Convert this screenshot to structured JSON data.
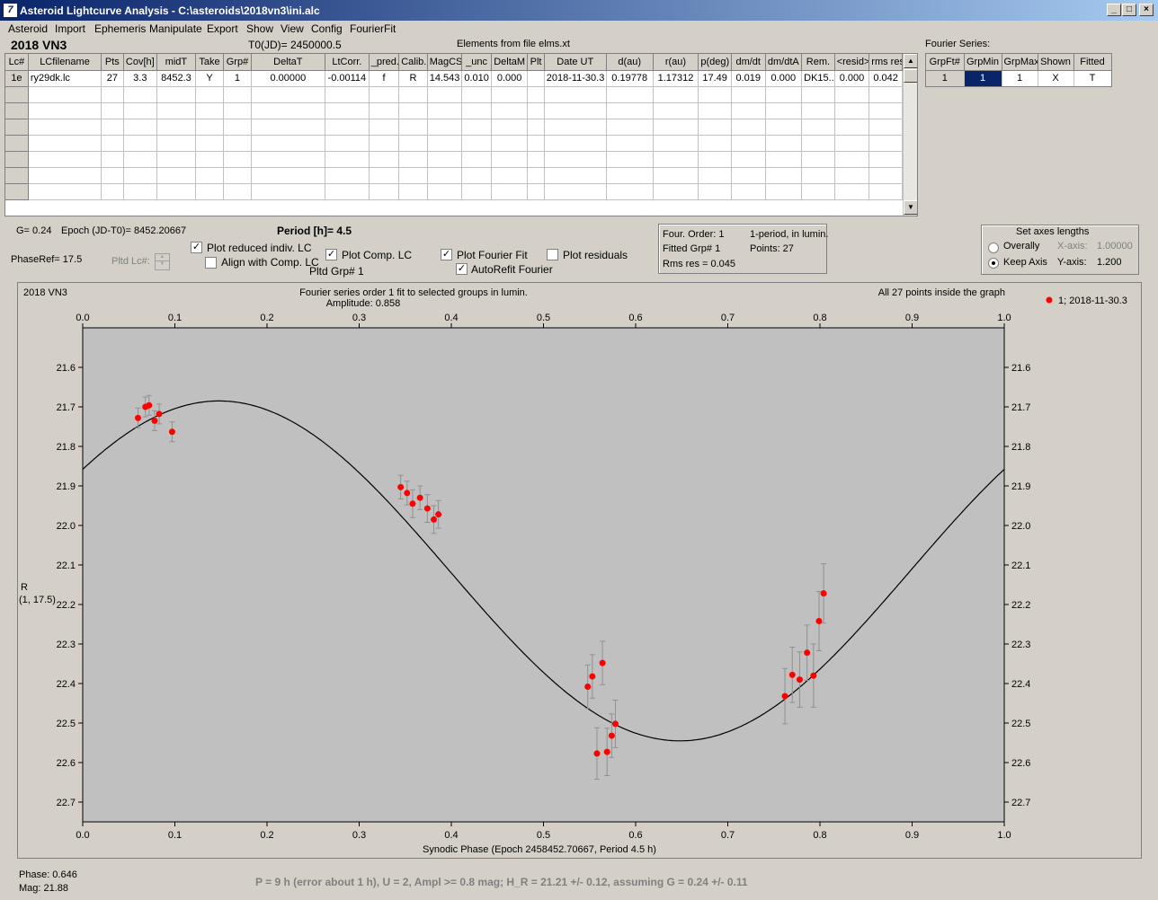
{
  "window": {
    "title": "Asteroid Lightcurve Analysis - C:\\asteroids\\2018vn3\\ini.alc",
    "icon": "app-logo-icon",
    "min": "_",
    "max": "□",
    "close": "×"
  },
  "menu": [
    "Asteroid",
    "Import",
    "Ephemeris",
    "Manipulate",
    "Export",
    "Show",
    "View",
    "Config",
    "FourierFit"
  ],
  "info": {
    "asteroid": "2018 VN3",
    "t0": "T0(JD)= 2450000.5",
    "elements": "Elements from file elms.xt",
    "fourier_title": "Fourier Series:"
  },
  "lc_table": {
    "headers": [
      "Lc#",
      "LCfilename",
      "Pts",
      "Cov[h]",
      "midT",
      "Take",
      "Grp#",
      "DeltaT",
      "LtCorr.",
      "_pred.",
      "Calib.",
      "MagCS",
      "_unc",
      "DeltaM",
      "Plt",
      "Date UT",
      "d(au)",
      "r(au)",
      "p(deg)",
      "dm/dt",
      "dm/dtA",
      "Rem.",
      "<resid>",
      "rms res"
    ],
    "rows": [
      [
        "1e",
        "ry29dk.lc",
        "27",
        "3.3",
        "8452.3",
        "Y",
        "1",
        "0.00000",
        "-0.00114",
        "f",
        "R",
        "14.543",
        "0.010",
        "0.000",
        "",
        "2018-11-30.3",
        "0.19778",
        "1.17312",
        "17.49",
        "0.019",
        "0.000",
        "DK15...",
        "0.000",
        "0.042"
      ]
    ]
  },
  "fourier_table": {
    "headers": [
      "GrpFt#",
      "GrpMin",
      "GrpMax",
      "Shown",
      "Fitted"
    ],
    "rows": [
      [
        "1",
        "1",
        "1",
        "X",
        "T"
      ]
    ]
  },
  "params": {
    "g": "G= 0.24",
    "epoch": "Epoch (JD-T0)= 8452.20667",
    "period": "Period [h]= 4.5",
    "phaseref": "PhaseRef= 17.5",
    "pltd_lc": "Pltd Lc#:",
    "plot_reduced": "Plot reduced indiv. LC",
    "align_comp": "Align with Comp. LC",
    "plot_comp": "Plot Comp. LC",
    "pltd_grp": "Pltd Grp#  1",
    "plot_fourier": "Plot Fourier Fit",
    "autorefit": "AutoRefit Fourier",
    "plot_resid": "Plot residuals",
    "four_order": "Four. Order:  1",
    "one_period": "1-period, in lumin.",
    "fitted_grp": "Fitted Grp# 1",
    "points": "Points: 27",
    "rms": "Rms res     = 0.045",
    "axes_title": "Set axes lengths",
    "overally": "Overally",
    "keep_axis": "Keep Axis",
    "xaxis_lbl": "X-axis:",
    "xaxis_val": "1.00000",
    "yaxis_lbl": "Y-axis:",
    "yaxis_val": "1.200"
  },
  "plot": {
    "object": "2018 VN3",
    "subtitle1": "Fourier series order 1 fit to selected groups in lumin.",
    "subtitle2": "Amplitude: 0.858",
    "note": "All 27 points inside the graph",
    "legend": "1; 2018-11-30.3",
    "ylabel1": "R",
    "ylabel2": "(1, 17.5)",
    "xlabel": "Synodic Phase (Epoch 2458452.70667, Period 4.5 h)"
  },
  "chart_data": {
    "type": "scatter",
    "xlim": [
      0.0,
      1.0
    ],
    "ylim": [
      21.5,
      22.75
    ],
    "y_inverted": true,
    "x_ticks": [
      "0.0",
      "0.1",
      "0.2",
      "0.3",
      "0.4",
      "0.5",
      "0.6",
      "0.7",
      "0.8",
      "0.9",
      "1.0"
    ],
    "y_ticks": [
      "21.6",
      "21.7",
      "21.8",
      "21.9",
      "22.0",
      "22.1",
      "22.2",
      "22.3",
      "22.4",
      "22.5",
      "22.6",
      "22.7"
    ],
    "point_color": "#ff0000",
    "errorbar_color": "#909090",
    "fit_color": "#000000",
    "fourier_fit": {
      "mean": 22.115,
      "amplitude": 0.43,
      "phase_of_max": 0.148
    },
    "points": [
      {
        "x": 0.06,
        "y": 21.728,
        "e": 0.025
      },
      {
        "x": 0.068,
        "y": 21.7,
        "e": 0.025
      },
      {
        "x": 0.072,
        "y": 21.696,
        "e": 0.025
      },
      {
        "x": 0.078,
        "y": 21.735,
        "e": 0.025
      },
      {
        "x": 0.083,
        "y": 21.718,
        "e": 0.025
      },
      {
        "x": 0.097,
        "y": 21.763,
        "e": 0.025
      },
      {
        "x": 0.345,
        "y": 21.903,
        "e": 0.03
      },
      {
        "x": 0.352,
        "y": 21.918,
        "e": 0.03
      },
      {
        "x": 0.358,
        "y": 21.945,
        "e": 0.035
      },
      {
        "x": 0.366,
        "y": 21.93,
        "e": 0.03
      },
      {
        "x": 0.374,
        "y": 21.957,
        "e": 0.035
      },
      {
        "x": 0.381,
        "y": 21.985,
        "e": 0.035
      },
      {
        "x": 0.386,
        "y": 21.972,
        "e": 0.035
      },
      {
        "x": 0.548,
        "y": 22.408,
        "e": 0.055
      },
      {
        "x": 0.553,
        "y": 22.382,
        "e": 0.055
      },
      {
        "x": 0.558,
        "y": 22.577,
        "e": 0.065
      },
      {
        "x": 0.564,
        "y": 22.348,
        "e": 0.055
      },
      {
        "x": 0.569,
        "y": 22.573,
        "e": 0.06
      },
      {
        "x": 0.574,
        "y": 22.532,
        "e": 0.055
      },
      {
        "x": 0.578,
        "y": 22.502,
        "e": 0.06
      },
      {
        "x": 0.762,
        "y": 22.432,
        "e": 0.07
      },
      {
        "x": 0.77,
        "y": 22.378,
        "e": 0.07
      },
      {
        "x": 0.778,
        "y": 22.39,
        "e": 0.07
      },
      {
        "x": 0.786,
        "y": 22.322,
        "e": 0.07
      },
      {
        "x": 0.793,
        "y": 22.38,
        "e": 0.08
      },
      {
        "x": 0.799,
        "y": 22.242,
        "e": 0.075
      },
      {
        "x": 0.804,
        "y": 22.172,
        "e": 0.075
      }
    ]
  },
  "footer": {
    "phase": "Phase:  0.646",
    "mag": "Mag:    21.88",
    "summary": "P = 9 h (error about 1 h), U = 2, Ampl >= 0.8 mag; H_R = 21.21 +/- 0.12, assuming G = 0.24 +/- 0.11"
  }
}
